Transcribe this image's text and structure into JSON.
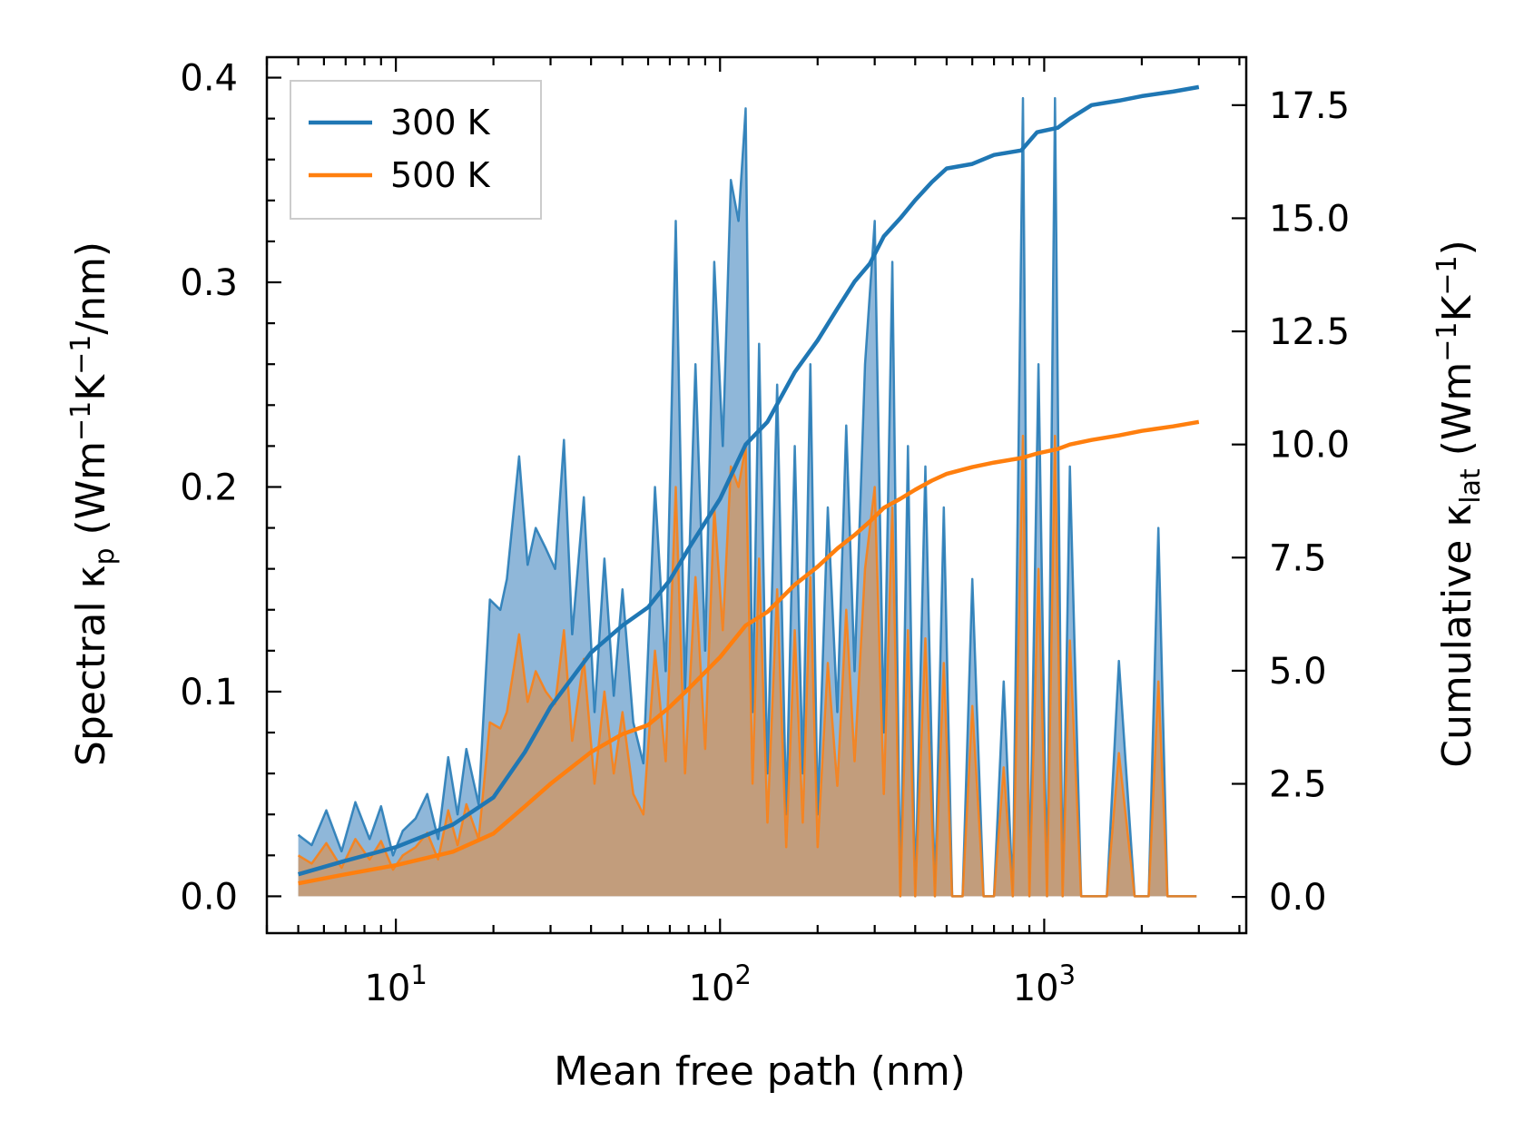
{
  "chart_data": {
    "type": "line",
    "x_scale": "log",
    "xlabel": "Mean free path (nm)",
    "ylabel_left": {
      "main": "Spectral κ",
      "sub": "p",
      "rest": " (Wm",
      "sup1": "−1",
      "mid": "K",
      "sup2": "−1",
      "end": "/nm)"
    },
    "ylabel_right": {
      "main": "Cumulative κ",
      "sub": "lat",
      "rest": " (Wm",
      "sup1": "−1",
      "mid": "K",
      "sup2": "−1",
      "end": ")"
    },
    "xlim": [
      4.0,
      4200
    ],
    "ylim_left": [
      -0.018,
      0.41
    ],
    "ylim_right": [
      -0.8,
      18.56
    ],
    "x_ticks": [
      {
        "value": 10,
        "base": "10",
        "exp": "1"
      },
      {
        "value": 100,
        "base": "10",
        "exp": "2"
      },
      {
        "value": 1000,
        "base": "10",
        "exp": "3"
      }
    ],
    "y_ticks_left": [
      "0.0",
      "0.1",
      "0.2",
      "0.3",
      "0.4"
    ],
    "y_ticks_right": [
      "0.0",
      "2.5",
      "5.0",
      "7.5",
      "10.0",
      "12.5",
      "15.0",
      "17.5"
    ],
    "legend": {
      "position": "upper left",
      "entries": [
        "300 K",
        "500 K"
      ]
    },
    "colors": {
      "s300": "#1f77b4",
      "s500": "#ff7f0e",
      "fill300": "#7fadd4",
      "fill500": "#c99a6e"
    },
    "spectral": [
      {
        "name": "300 K",
        "x": [
          5.0,
          5.5,
          6.1,
          6.8,
          7.5,
          8.3,
          9.0,
          9.8,
          10.5,
          11.5,
          12.5,
          13.5,
          14.5,
          15.5,
          16.5,
          18.0,
          19.5,
          21,
          22,
          24,
          25.5,
          27,
          29,
          31,
          33,
          35,
          38,
          41,
          44,
          47,
          50,
          54,
          58,
          63,
          68,
          73,
          78,
          84,
          90,
          96,
          102,
          108,
          114,
          120,
          126,
          132,
          140,
          150,
          160,
          170,
          180,
          190,
          200,
          215,
          230,
          245,
          260,
          280,
          300,
          320,
          340,
          360,
          380,
          400,
          430,
          460,
          490,
          520,
          560,
          600,
          650,
          700,
          750,
          800,
          860,
          900,
          960,
          1020,
          1080,
          1140,
          1200,
          1300,
          1400,
          1480,
          1560,
          1700,
          1900,
          2100,
          2250,
          2400,
          2600,
          2800,
          2950
        ],
        "y": [
          0.03,
          0.025,
          0.042,
          0.022,
          0.046,
          0.028,
          0.044,
          0.02,
          0.032,
          0.038,
          0.05,
          0.028,
          0.068,
          0.04,
          0.072,
          0.045,
          0.145,
          0.14,
          0.155,
          0.215,
          0.162,
          0.18,
          0.17,
          0.16,
          0.223,
          0.128,
          0.195,
          0.09,
          0.165,
          0.098,
          0.15,
          0.085,
          0.065,
          0.2,
          0.11,
          0.33,
          0.1,
          0.26,
          0.12,
          0.31,
          0.22,
          0.35,
          0.33,
          0.385,
          0.09,
          0.27,
          0.06,
          0.25,
          0.04,
          0.22,
          0.06,
          0.26,
          0.04,
          0.19,
          0.09,
          0.23,
          0.11,
          0.26,
          0.33,
          0.08,
          0.31,
          0.0,
          0.22,
          0.0,
          0.21,
          0.0,
          0.19,
          0.0,
          0.0,
          0.155,
          0.0,
          0.0,
          0.105,
          0.0,
          0.39,
          0.0,
          0.26,
          0.0,
          0.39,
          0.0,
          0.21,
          0.0,
          0.0,
          0.0,
          0.0,
          0.115,
          0.0,
          0.0,
          0.18,
          0.0,
          0.0,
          0.0,
          0.0
        ]
      },
      {
        "name": "500 K",
        "x": [
          5.0,
          5.5,
          6.1,
          6.8,
          7.5,
          8.3,
          9.0,
          9.8,
          10.5,
          11.5,
          12.5,
          13.5,
          14.5,
          15.5,
          16.5,
          18.0,
          19.5,
          21,
          22,
          24,
          25.5,
          27,
          29,
          31,
          33,
          35,
          38,
          41,
          44,
          47,
          50,
          54,
          58,
          63,
          68,
          73,
          78,
          84,
          90,
          96,
          102,
          108,
          114,
          120,
          126,
          132,
          140,
          150,
          160,
          170,
          180,
          190,
          200,
          215,
          230,
          245,
          260,
          280,
          300,
          320,
          340,
          360,
          380,
          400,
          430,
          460,
          490,
          520,
          560,
          600,
          650,
          700,
          750,
          800,
          860,
          900,
          960,
          1020,
          1080,
          1140,
          1200,
          1300,
          1400,
          1480,
          1560,
          1700,
          1900,
          2100,
          2250,
          2400,
          2600,
          2800,
          2950
        ],
        "y": [
          0.02,
          0.016,
          0.026,
          0.014,
          0.028,
          0.018,
          0.027,
          0.013,
          0.02,
          0.024,
          0.031,
          0.018,
          0.042,
          0.025,
          0.045,
          0.028,
          0.085,
          0.082,
          0.09,
          0.128,
          0.095,
          0.11,
          0.1,
          0.094,
          0.13,
          0.076,
          0.116,
          0.055,
          0.1,
          0.06,
          0.09,
          0.05,
          0.04,
          0.12,
          0.066,
          0.2,
          0.06,
          0.156,
          0.072,
          0.19,
          0.13,
          0.21,
          0.2,
          0.22,
          0.055,
          0.165,
          0.036,
          0.15,
          0.024,
          0.13,
          0.036,
          0.156,
          0.024,
          0.114,
          0.054,
          0.14,
          0.066,
          0.16,
          0.2,
          0.05,
          0.19,
          0.0,
          0.13,
          0.0,
          0.126,
          0.0,
          0.114,
          0.0,
          0.0,
          0.093,
          0.0,
          0.0,
          0.063,
          0.0,
          0.225,
          0.0,
          0.16,
          0.0,
          0.225,
          0.0,
          0.125,
          0.0,
          0.0,
          0.0,
          0.0,
          0.07,
          0.0,
          0.0,
          0.105,
          0.0,
          0.0,
          0.0,
          0.0
        ]
      }
    ],
    "cumulative": [
      {
        "name": "300 K",
        "x": [
          5,
          7,
          10,
          15,
          20,
          25,
          30,
          40,
          50,
          60,
          70,
          80,
          100,
          120,
          140,
          170,
          200,
          230,
          260,
          290,
          320,
          360,
          400,
          450,
          500,
          600,
          700,
          850,
          950,
          1100,
          1200,
          1400,
          1700,
          2000,
          2500,
          3000
        ],
        "y": [
          0.5,
          0.8,
          1.1,
          1.6,
          2.2,
          3.2,
          4.2,
          5.4,
          6.0,
          6.4,
          7.0,
          7.7,
          8.8,
          10.0,
          10.5,
          11.6,
          12.3,
          13.0,
          13.6,
          14.0,
          14.6,
          15.0,
          15.4,
          15.8,
          16.1,
          16.2,
          16.4,
          16.5,
          16.9,
          17.0,
          17.2,
          17.5,
          17.6,
          17.7,
          17.8,
          17.9
        ]
      },
      {
        "name": "500 K",
        "x": [
          5,
          7,
          10,
          15,
          20,
          25,
          30,
          40,
          50,
          60,
          70,
          80,
          100,
          120,
          140,
          170,
          200,
          230,
          260,
          290,
          320,
          360,
          400,
          450,
          500,
          600,
          700,
          850,
          950,
          1100,
          1200,
          1400,
          1700,
          2000,
          2500,
          3000
        ],
        "y": [
          0.3,
          0.5,
          0.7,
          1.0,
          1.4,
          2.0,
          2.5,
          3.2,
          3.6,
          3.8,
          4.2,
          4.6,
          5.3,
          6.0,
          6.3,
          6.9,
          7.3,
          7.7,
          8.0,
          8.3,
          8.6,
          8.8,
          9.0,
          9.2,
          9.35,
          9.5,
          9.6,
          9.7,
          9.8,
          9.9,
          10.0,
          10.1,
          10.2,
          10.3,
          10.4,
          10.5
        ]
      }
    ]
  }
}
